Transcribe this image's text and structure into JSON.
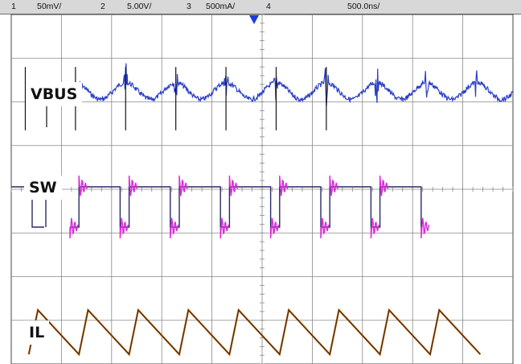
{
  "header": {
    "ch1_index": "1",
    "ch1_scale": "50mV/",
    "ch2_index": "2",
    "ch2_scale": "5.00V/",
    "ch3_index": "3",
    "ch3_scale": "500mA/",
    "ch4_index": "4",
    "timebase": "500.0ns/"
  },
  "chart_data": {
    "type": "line",
    "title": "",
    "xlabel": "",
    "ylabel": "",
    "grid": true,
    "grid_divisions": {
      "x": 10,
      "y": 8
    },
    "time_per_div": "500.0ns",
    "switching_period_divisions": 1.0,
    "series": [
      {
        "name": "VBUS",
        "channel": "1",
        "scale": "50mV/",
        "color": "#2b3fc8",
        "shape": "ripple with switching spikes",
        "ripple_amplitude_div": 0.35,
        "spike_amplitude_div": 1.0
      },
      {
        "name": "SW",
        "channel": "2",
        "scale": "5.00V/",
        "color": "#d82bd8",
        "shape": "square wave",
        "high_level_div": 1.5,
        "low_level_div": 0.5,
        "duty": 0.82
      },
      {
        "name": "IL",
        "channel": "3",
        "scale": "500mA/",
        "color": "#b45a00",
        "shape": "triangle ripple",
        "peak_div": 0.85,
        "valley_div": -0.15
      }
    ]
  },
  "colors": {
    "grid": "#888888",
    "trace_vbus": "#2b3fc8",
    "trace_sw": "#d82bd8",
    "trace_il": "#b45a00",
    "marker": "#1b3ed6"
  }
}
